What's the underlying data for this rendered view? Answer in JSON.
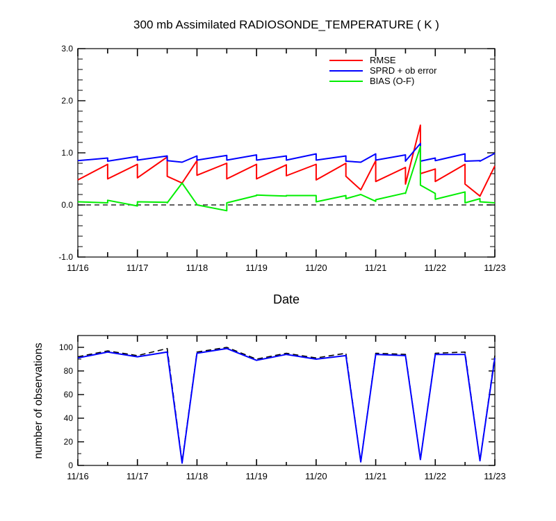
{
  "chart_data": [
    {
      "type": "line",
      "title": "300 mb Assimilated RADIOSONDE_TEMPERATURE ( K )",
      "xlabel": "Date",
      "ylabel": "",
      "x_tick_labels": [
        "11/16",
        "11/17",
        "11/18",
        "11/19",
        "11/20",
        "11/21",
        "11/22",
        "11/23"
      ],
      "xlim": [
        0,
        7
      ],
      "ylim": [
        -1.0,
        3.0
      ],
      "y_ticks": [
        -1.0,
        0.0,
        1.0,
        2.0,
        3.0
      ],
      "y_tick_labels": [
        "-1.0",
        "0.0",
        "1.0",
        "2.0",
        "3.0"
      ],
      "reference_line": {
        "y": 0.0,
        "style": "dashed"
      },
      "legend_position": "top-right",
      "series": [
        {
          "name": "RMSE",
          "color": "#ff0000",
          "x": [
            0,
            0.5,
            0.5,
            1.0,
            1.0,
            1.5,
            1.5,
            1.75,
            2.0,
            2.0,
            2.5,
            2.5,
            3.0,
            3.0,
            3.5,
            3.5,
            4.0,
            4.0,
            4.5,
            4.5,
            4.75,
            5.0,
            5.0,
            5.5,
            5.5,
            5.75,
            5.75,
            6.0,
            6.0,
            6.5,
            6.5,
            6.75,
            7.0
          ],
          "y": [
            0.48,
            0.78,
            0.5,
            0.78,
            0.52,
            0.92,
            0.55,
            0.42,
            0.85,
            0.57,
            0.8,
            0.5,
            0.78,
            0.5,
            0.77,
            0.56,
            0.78,
            0.48,
            0.8,
            0.55,
            0.29,
            0.85,
            0.45,
            0.72,
            0.4,
            1.53,
            0.6,
            0.69,
            0.45,
            0.78,
            0.4,
            0.17,
            0.75
          ]
        },
        {
          "name": "SPRD + ob error",
          "color": "#0000ff",
          "x": [
            0,
            0.5,
            0.5,
            1.0,
            1.0,
            1.5,
            1.5,
            1.75,
            2.0,
            2.0,
            2.5,
            2.5,
            3.0,
            3.0,
            3.5,
            3.5,
            4.0,
            4.0,
            4.5,
            4.5,
            4.75,
            5.0,
            5.0,
            5.5,
            5.5,
            5.75,
            5.75,
            6.0,
            6.0,
            6.5,
            6.5,
            6.75,
            6.75,
            7.0
          ],
          "y": [
            0.85,
            0.9,
            0.84,
            0.93,
            0.86,
            0.94,
            0.85,
            0.82,
            0.94,
            0.86,
            0.95,
            0.86,
            0.96,
            0.86,
            0.94,
            0.86,
            0.98,
            0.86,
            0.94,
            0.84,
            0.82,
            0.98,
            0.86,
            0.96,
            0.84,
            1.18,
            0.84,
            0.9,
            0.85,
            0.98,
            0.84,
            0.85,
            0.84,
            0.99
          ]
        },
        {
          "name": "BIAS (O-F)",
          "color": "#00ee00",
          "x": [
            0,
            0.5,
            0.5,
            1.0,
            1.0,
            1.5,
            1.5,
            1.75,
            2.0,
            2.0,
            2.5,
            2.5,
            3.0,
            3.0,
            3.5,
            3.5,
            4.0,
            4.0,
            4.5,
            4.5,
            4.75,
            5.0,
            5.0,
            5.5,
            5.5,
            5.75,
            5.75,
            6.0,
            6.0,
            6.5,
            6.5,
            6.75,
            6.75,
            7.0
          ],
          "y": [
            0.06,
            0.04,
            0.09,
            -0.02,
            0.06,
            0.05,
            0.04,
            0.42,
            0.01,
            0.0,
            -0.11,
            0.04,
            0.18,
            0.19,
            0.17,
            0.18,
            0.18,
            0.06,
            0.18,
            0.12,
            0.2,
            0.07,
            0.1,
            0.23,
            0.22,
            1.12,
            0.38,
            0.22,
            0.11,
            0.25,
            0.04,
            0.12,
            0.06,
            0.04
          ]
        }
      ]
    },
    {
      "type": "line",
      "title": "",
      "xlabel": "",
      "ylabel": "number of observations",
      "x_tick_labels": [
        "11/16",
        "11/17",
        "11/18",
        "11/19",
        "11/20",
        "11/21",
        "11/22",
        "11/23"
      ],
      "xlim": [
        0,
        7
      ],
      "ylim": [
        0,
        110
      ],
      "y_ticks": [
        0,
        20,
        40,
        60,
        80,
        100
      ],
      "y_tick_labels": [
        "0",
        "20",
        "40",
        "60",
        "80",
        "100"
      ],
      "series": [
        {
          "color": "#000000",
          "style": "dashed",
          "x": [
            0,
            0.5,
            1.0,
            1.5,
            1.75,
            2.0,
            2.5,
            3.0,
            3.5,
            4.0,
            4.5,
            4.75,
            5.0,
            5.5,
            5.75,
            6.0,
            6.5,
            6.75,
            7.0
          ],
          "y": [
            92,
            97,
            93,
            99,
            3,
            96,
            100,
            90,
            95,
            91,
            95,
            3,
            95,
            94,
            5,
            95,
            96,
            4,
            93
          ]
        },
        {
          "color": "#0000ff",
          "style": "solid",
          "x": [
            0,
            0.5,
            1.0,
            1.5,
            1.75,
            2.0,
            2.5,
            3.0,
            3.5,
            4.0,
            4.5,
            4.75,
            5.0,
            5.5,
            5.75,
            6.0,
            6.5,
            6.75,
            7.0
          ],
          "y": [
            91,
            96,
            92,
            96,
            2,
            95,
            99,
            89,
            94,
            90,
            93,
            3,
            94,
            93,
            5,
            94,
            94,
            4,
            91
          ]
        }
      ]
    }
  ]
}
